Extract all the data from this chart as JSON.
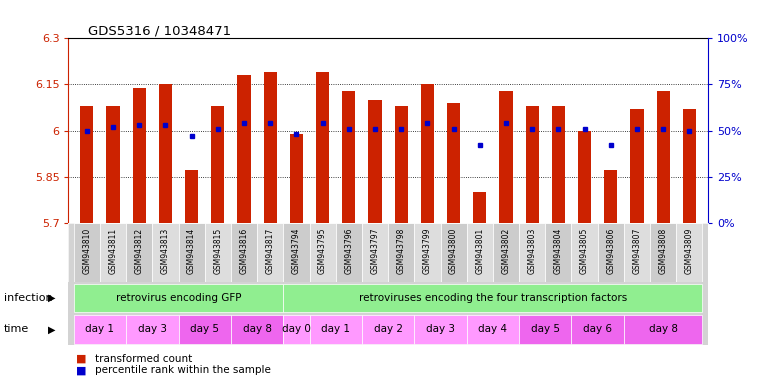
{
  "title": "GDS5316 / 10348471",
  "samples": [
    "GSM943810",
    "GSM943811",
    "GSM943812",
    "GSM943813",
    "GSM943814",
    "GSM943815",
    "GSM943816",
    "GSM943817",
    "GSM943794",
    "GSM943795",
    "GSM943796",
    "GSM943797",
    "GSM943798",
    "GSM943799",
    "GSM943800",
    "GSM943801",
    "GSM943802",
    "GSM943803",
    "GSM943804",
    "GSM943805",
    "GSM943806",
    "GSM943807",
    "GSM943808",
    "GSM943809"
  ],
  "red_values": [
    6.08,
    6.08,
    6.14,
    6.15,
    5.87,
    6.08,
    6.18,
    6.19,
    5.99,
    6.19,
    6.13,
    6.1,
    6.08,
    6.15,
    6.09,
    5.8,
    6.13,
    6.08,
    6.08,
    6.0,
    5.87,
    6.07,
    6.13,
    6.07
  ],
  "blue_values": [
    50,
    52,
    53,
    53,
    47,
    51,
    54,
    54,
    48,
    54,
    51,
    51,
    51,
    54,
    51,
    42,
    54,
    51,
    51,
    51,
    42,
    51,
    51,
    50
  ],
  "ylim_left": [
    5.7,
    6.3
  ],
  "ylim_right": [
    0,
    100
  ],
  "left_ticks": [
    5.7,
    5.85,
    6.0,
    6.15,
    6.3
  ],
  "right_ticks": [
    0,
    25,
    50,
    75,
    100
  ],
  "left_tick_labels": [
    "5.7",
    "5.85",
    "6",
    "6.15",
    "6.3"
  ],
  "right_tick_labels": [
    "0%",
    "25%",
    "50%",
    "75%",
    "100%"
  ],
  "bar_color": "#CC2200",
  "dot_color": "#0000CC",
  "left_axis_color": "#CC2200",
  "right_axis_color": "#0000CC",
  "bg_color": "#FFFFFF",
  "legend_red": "transformed count",
  "legend_blue": "percentile rank within the sample",
  "row_label_infection": "infection",
  "row_label_time": "time",
  "infection_groups": [
    {
      "label": "retrovirus encoding GFP",
      "start": 0,
      "end": 8,
      "color": "#90EE90"
    },
    {
      "label": "retroviruses encoding the four transcription factors",
      "start": 8,
      "end": 24,
      "color": "#90EE90"
    }
  ],
  "time_boundaries": [
    {
      "s": 0,
      "e": 1,
      "label": "day 1",
      "color": "#FF99FF"
    },
    {
      "s": 2,
      "e": 3,
      "label": "day 3",
      "color": "#FF99FF"
    },
    {
      "s": 4,
      "e": 5,
      "label": "day 5",
      "color": "#EE66EE"
    },
    {
      "s": 6,
      "e": 7,
      "label": "day 8",
      "color": "#EE66EE"
    },
    {
      "s": 8,
      "e": 8,
      "label": "day 0",
      "color": "#FF99FF"
    },
    {
      "s": 9,
      "e": 10,
      "label": "day 1",
      "color": "#FF99FF"
    },
    {
      "s": 11,
      "e": 12,
      "label": "day 2",
      "color": "#FF99FF"
    },
    {
      "s": 13,
      "e": 14,
      "label": "day 3",
      "color": "#FF99FF"
    },
    {
      "s": 15,
      "e": 16,
      "label": "day 4",
      "color": "#FF99FF"
    },
    {
      "s": 17,
      "e": 18,
      "label": "day 5",
      "color": "#EE66EE"
    },
    {
      "s": 19,
      "e": 20,
      "label": "day 6",
      "color": "#EE66EE"
    },
    {
      "s": 21,
      "e": 23,
      "label": "day 8",
      "color": "#EE66EE"
    }
  ],
  "sample_bg": "#D3D3D3",
  "grid_dotted_color": "black",
  "grid_yticks": [
    5.85,
    6.0,
    6.15
  ]
}
